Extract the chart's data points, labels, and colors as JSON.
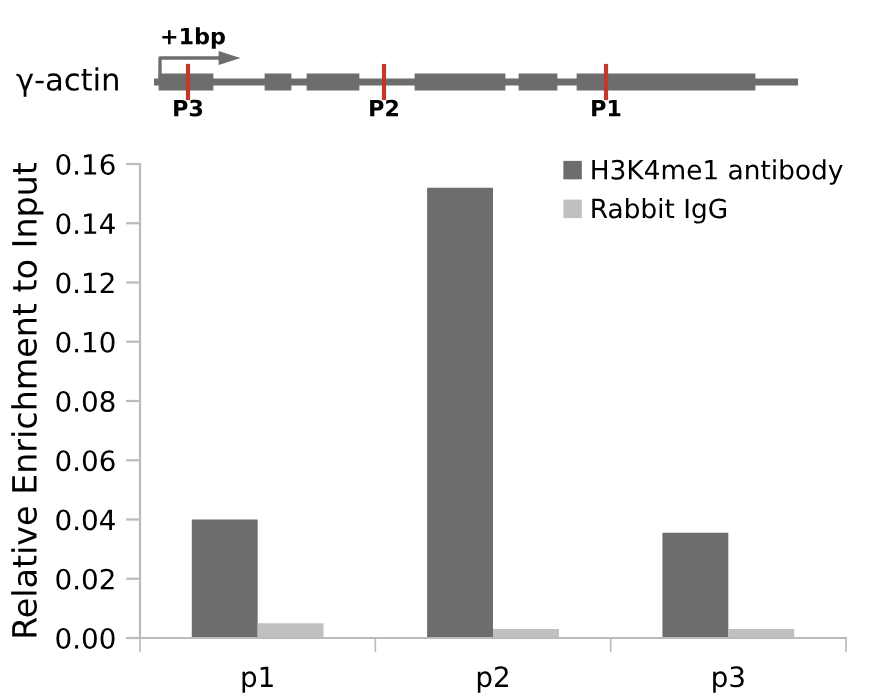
{
  "chart_data": {
    "type": "bar",
    "ylabel": "Relative Enrichment to Input",
    "categories": [
      "p1",
      "p2",
      "p3"
    ],
    "series": [
      {
        "name": "H3K4me1 antibody",
        "color": "#6d6d6d",
        "values": [
          0.04,
          0.152,
          0.0355
        ]
      },
      {
        "name": "Rabbit IgG",
        "color": "#c0c0c0",
        "values": [
          0.005,
          0.003,
          0.003
        ]
      }
    ],
    "ylim": [
      0,
      0.16
    ],
    "yticks": [
      {
        "value": 0,
        "label": "0.00"
      },
      {
        "value": 0.02,
        "label": "0.02"
      },
      {
        "value": 0.04,
        "label": "0.04"
      },
      {
        "value": 0.06,
        "label": "0.06"
      },
      {
        "value": 0.08,
        "label": "0.08"
      },
      {
        "value": 0.1,
        "label": "0.10"
      },
      {
        "value": 0.12,
        "label": "0.12"
      },
      {
        "value": 0.14,
        "label": "0.14"
      },
      {
        "value": 0.16,
        "label": "0.16"
      }
    ],
    "grid": false,
    "legend": "top right",
    "annotations": [
      "γ-actin",
      "+1bp",
      "P3",
      "P2",
      "P1"
    ]
  }
}
